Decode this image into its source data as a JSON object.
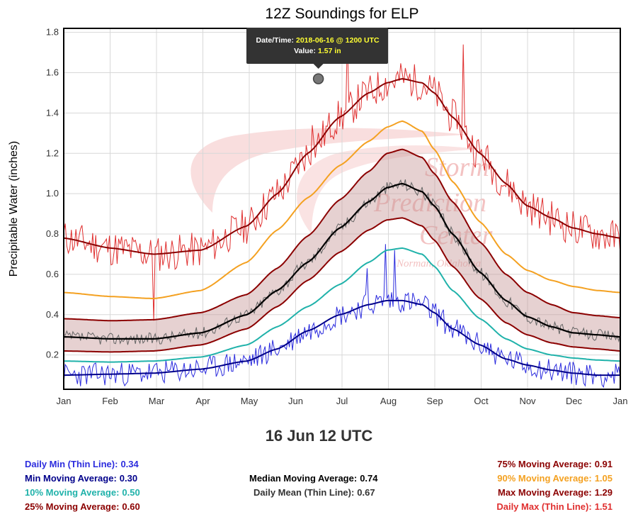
{
  "chart_data": {
    "type": "line",
    "title": "12Z Soundings for ELP",
    "xlabel": "",
    "ylabel": "Precipitable Water (inches)",
    "x_ticks": [
      "Jan",
      "Feb",
      "Mar",
      "Apr",
      "May",
      "Jun",
      "Jul",
      "Aug",
      "Sep",
      "Oct",
      "Nov",
      "Dec",
      "Jan"
    ],
    "y_ticks": [
      "0.2",
      "0.4",
      "0.6",
      "0.8",
      "1.0",
      "1.2",
      "1.4",
      "1.6",
      "1.8"
    ],
    "ylim": [
      0.03,
      1.82
    ],
    "xlim_days": [
      0,
      365
    ],
    "grid": true,
    "watermark": [
      "Storm",
      "Prediction",
      "Center",
      "Norman, Oklahoma"
    ],
    "tooltip": {
      "date_label": "Date/Time:",
      "date_value": "2018-06-16 @ 1200 UTC",
      "value_label": "Value:",
      "value_value": "1.57 in",
      "day": 167,
      "y": 1.57
    },
    "series": [
      {
        "key": "min_ma",
        "color": "#00008b",
        "width": 2,
        "points": [
          [
            0,
            0.1
          ],
          [
            31,
            0.105
          ],
          [
            59,
            0.11
          ],
          [
            90,
            0.13
          ],
          [
            120,
            0.17
          ],
          [
            140,
            0.23
          ],
          [
            160,
            0.32
          ],
          [
            181,
            0.4
          ],
          [
            200,
            0.45
          ],
          [
            212,
            0.47
          ],
          [
            222,
            0.47
          ],
          [
            235,
            0.45
          ],
          [
            243,
            0.41
          ],
          [
            255,
            0.33
          ],
          [
            273,
            0.25
          ],
          [
            290,
            0.18
          ],
          [
            304,
            0.15
          ],
          [
            320,
            0.125
          ],
          [
            334,
            0.11
          ],
          [
            350,
            0.1
          ],
          [
            365,
            0.1
          ]
        ]
      },
      {
        "key": "p10_ma",
        "color": "#20b2aa",
        "width": 2,
        "points": [
          [
            0,
            0.17
          ],
          [
            31,
            0.165
          ],
          [
            59,
            0.17
          ],
          [
            90,
            0.19
          ],
          [
            120,
            0.25
          ],
          [
            140,
            0.34
          ],
          [
            160,
            0.44
          ],
          [
            181,
            0.55
          ],
          [
            200,
            0.66
          ],
          [
            212,
            0.72
          ],
          [
            222,
            0.73
          ],
          [
            235,
            0.7
          ],
          [
            243,
            0.64
          ],
          [
            255,
            0.52
          ],
          [
            273,
            0.38
          ],
          [
            290,
            0.28
          ],
          [
            304,
            0.23
          ],
          [
            320,
            0.2
          ],
          [
            334,
            0.185
          ],
          [
            350,
            0.175
          ],
          [
            365,
            0.17
          ]
        ]
      },
      {
        "key": "p25_ma",
        "color": "#8b0000",
        "width": 2,
        "points": [
          [
            0,
            0.22
          ],
          [
            31,
            0.215
          ],
          [
            59,
            0.22
          ],
          [
            90,
            0.25
          ],
          [
            120,
            0.33
          ],
          [
            140,
            0.44
          ],
          [
            160,
            0.57
          ],
          [
            181,
            0.71
          ],
          [
            200,
            0.82
          ],
          [
            212,
            0.87
          ],
          [
            222,
            0.88
          ],
          [
            235,
            0.84
          ],
          [
            243,
            0.77
          ],
          [
            255,
            0.64
          ],
          [
            273,
            0.48
          ],
          [
            290,
            0.36
          ],
          [
            304,
            0.3
          ],
          [
            320,
            0.26
          ],
          [
            334,
            0.24
          ],
          [
            350,
            0.23
          ],
          [
            365,
            0.22
          ]
        ]
      },
      {
        "key": "p75_ma",
        "color": "#8b0000",
        "width": 2,
        "points": [
          [
            0,
            0.38
          ],
          [
            31,
            0.37
          ],
          [
            59,
            0.375
          ],
          [
            90,
            0.41
          ],
          [
            120,
            0.5
          ],
          [
            140,
            0.63
          ],
          [
            160,
            0.79
          ],
          [
            181,
            0.97
          ],
          [
            200,
            1.11
          ],
          [
            212,
            1.2
          ],
          [
            222,
            1.22
          ],
          [
            235,
            1.18
          ],
          [
            243,
            1.1
          ],
          [
            255,
            0.96
          ],
          [
            273,
            0.76
          ],
          [
            290,
            0.6
          ],
          [
            304,
            0.51
          ],
          [
            320,
            0.45
          ],
          [
            334,
            0.41
          ],
          [
            350,
            0.395
          ],
          [
            365,
            0.385
          ]
        ]
      },
      {
        "key": "median_ma",
        "color": "#000000",
        "width": 2.2,
        "points": [
          [
            0,
            0.29
          ],
          [
            31,
            0.28
          ],
          [
            59,
            0.28
          ],
          [
            90,
            0.31
          ],
          [
            120,
            0.4
          ],
          [
            140,
            0.52
          ],
          [
            160,
            0.66
          ],
          [
            181,
            0.83
          ],
          [
            200,
            0.96
          ],
          [
            212,
            1.03
          ],
          [
            222,
            1.05
          ],
          [
            235,
            1.01
          ],
          [
            243,
            0.94
          ],
          [
            255,
            0.8
          ],
          [
            273,
            0.61
          ],
          [
            290,
            0.47
          ],
          [
            304,
            0.39
          ],
          [
            320,
            0.34
          ],
          [
            334,
            0.31
          ],
          [
            350,
            0.3
          ],
          [
            365,
            0.29
          ]
        ]
      },
      {
        "key": "p90_ma",
        "color": "#f4a121",
        "width": 2,
        "points": [
          [
            0,
            0.51
          ],
          [
            31,
            0.49
          ],
          [
            59,
            0.48
          ],
          [
            90,
            0.52
          ],
          [
            120,
            0.66
          ],
          [
            140,
            0.82
          ],
          [
            160,
            0.98
          ],
          [
            181,
            1.14
          ],
          [
            200,
            1.26
          ],
          [
            212,
            1.33
          ],
          [
            222,
            1.36
          ],
          [
            235,
            1.31
          ],
          [
            243,
            1.22
          ],
          [
            255,
            1.06
          ],
          [
            273,
            0.86
          ],
          [
            290,
            0.7
          ],
          [
            304,
            0.62
          ],
          [
            320,
            0.57
          ],
          [
            334,
            0.54
          ],
          [
            350,
            0.52
          ],
          [
            365,
            0.51
          ]
        ]
      },
      {
        "key": "max_ma",
        "color": "#8b0000",
        "width": 2,
        "points": [
          [
            0,
            0.78
          ],
          [
            31,
            0.73
          ],
          [
            59,
            0.7
          ],
          [
            90,
            0.72
          ],
          [
            120,
            0.84
          ],
          [
            140,
            1.0
          ],
          [
            160,
            1.2
          ],
          [
            181,
            1.38
          ],
          [
            200,
            1.5
          ],
          [
            212,
            1.55
          ],
          [
            222,
            1.57
          ],
          [
            235,
            1.55
          ],
          [
            243,
            1.5
          ],
          [
            255,
            1.38
          ],
          [
            273,
            1.2
          ],
          [
            290,
            1.05
          ],
          [
            304,
            0.94
          ],
          [
            320,
            0.88
          ],
          [
            334,
            0.83
          ],
          [
            350,
            0.8
          ],
          [
            365,
            0.78
          ]
        ]
      }
    ],
    "daily_max": {
      "color": "#e03030",
      "amp": 0.09,
      "seed": 11,
      "spikes": [
        [
          59,
          0.37
        ],
        [
          163,
          1.34
        ],
        [
          186,
          1.78
        ],
        [
          262,
          1.74
        ],
        [
          258,
          1.32
        ]
      ]
    },
    "daily_min": {
      "color": "#2c2cde",
      "amp": 0.06,
      "seed": 23,
      "spikes": [
        [
          211,
          0.75
        ],
        [
          217,
          0.72
        ],
        [
          199,
          0.63
        ]
      ]
    },
    "daily_mean": {
      "color": "#666666",
      "amp": 0.03,
      "seed": 37,
      "spikes": []
    }
  },
  "date_heading": "16 Jun 12 UTC",
  "stats": {
    "daily_min": {
      "label": "Daily Min (Thin Line):",
      "value": "0.34",
      "color": "#2c2cde"
    },
    "min_ma": {
      "label": "Min Moving Average:",
      "value": "0.30",
      "color": "#00008b"
    },
    "p10_ma": {
      "label": "10% Moving Average:",
      "value": "0.50",
      "color": "#20b2aa"
    },
    "p25_ma": {
      "label": "25% Moving Average:",
      "value": "0.60",
      "color": "#8b0000"
    },
    "median_ma": {
      "label": "Median Moving Average:",
      "value": "0.74",
      "color": "#000000"
    },
    "daily_mean": {
      "label": "Daily Mean (Thin Line):",
      "value": "0.67",
      "color": "#333333"
    },
    "p75_ma": {
      "label": "75% Moving Average:",
      "value": "0.91",
      "color": "#8b0000"
    },
    "p90_ma": {
      "label": "90% Moving Average:",
      "value": "1.05",
      "color": "#f4a121"
    },
    "max_ma": {
      "label": "Max Moving Average:",
      "value": "1.29",
      "color": "#8b0000"
    },
    "daily_max": {
      "label": "Daily Max (Thin Line):",
      "value": "1.51",
      "color": "#e03030"
    }
  }
}
